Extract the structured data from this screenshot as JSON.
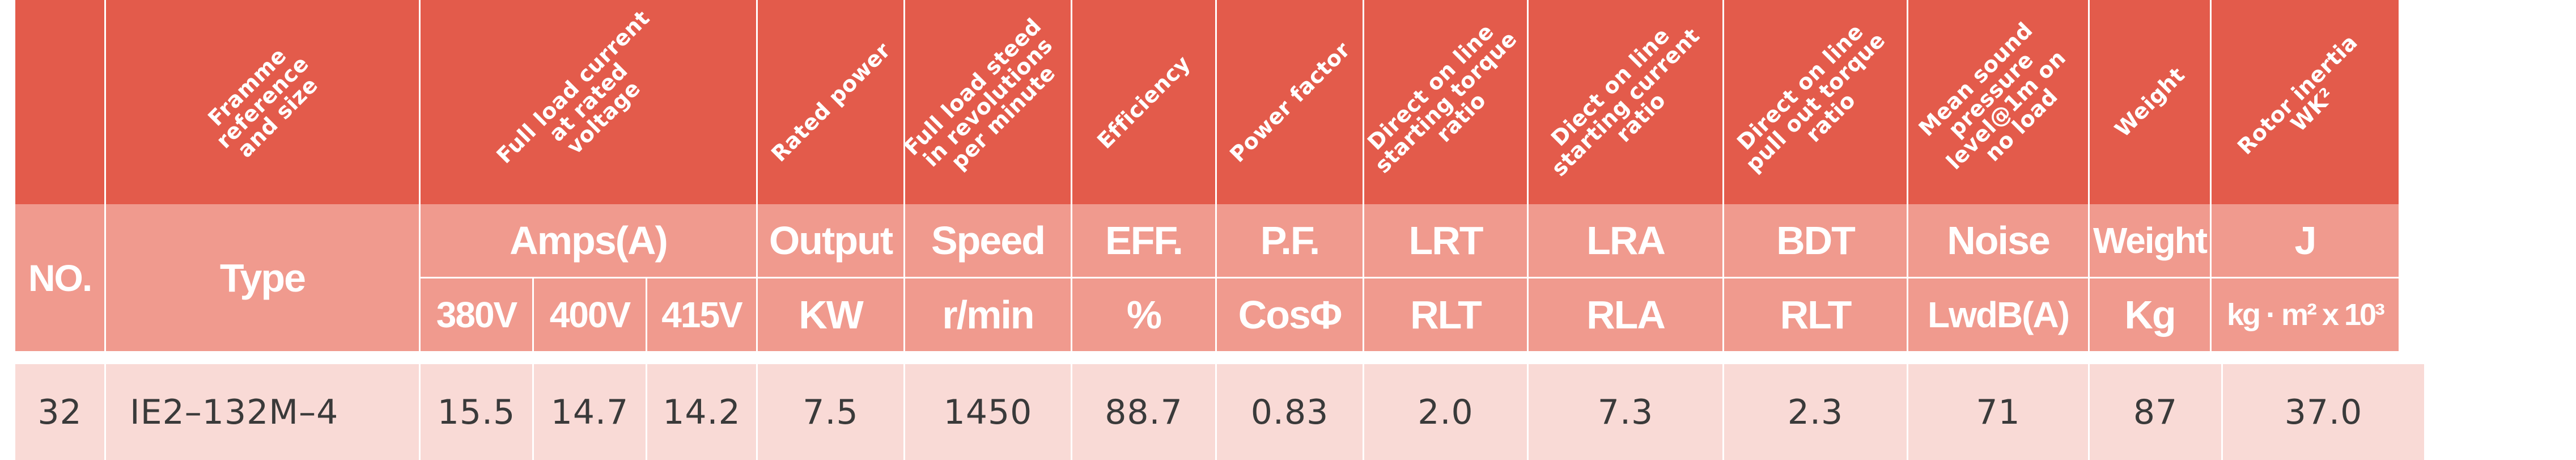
{
  "header_labels": {
    "frame": "Framme\nreference\nand size",
    "current": "Full load current\nat rated\nvoltage",
    "power": "Rated power",
    "speed": "Full load steed\nin revolutions\nper minute",
    "efficiency": "Efficiency",
    "power_factor": "Power factor",
    "lrt": "Direct on line\nstarting torque\nratio",
    "lra": "Diect on line\nstarting current\nratio",
    "bdt": "Direct on line\npull out torque\nratio",
    "noise": "Mean sound\npressure\nlevel@1m on\nno load",
    "weight": "Weight",
    "inertia": "Rotor inertia\nWK²"
  },
  "units": {
    "no": "NO.",
    "type": "Type",
    "amps": "Amps(A)",
    "v380": "380V",
    "v400": "400V",
    "v415": "415V",
    "output": "Output",
    "kw": "KW",
    "speed": "Speed",
    "rmin": "r/min",
    "eff": "EFF.",
    "pct": "%",
    "pf": "P.F.",
    "cos": "CosΦ",
    "lrt": "LRT",
    "rlt1": "RLT",
    "lra": "LRA",
    "rla": "RLA",
    "bdt": "BDT",
    "rlt2": "RLT",
    "noise": "Noise",
    "lwdb": "LwdB(A)",
    "weight": "Weight",
    "kg": "Kg",
    "j": "J",
    "inertia_unit": "kg · m² x 10³"
  },
  "rows": [
    {
      "no": "32",
      "type": "IE2–132M–4",
      "a380": "15.5",
      "a400": "14.7",
      "a415": "14.2",
      "output": "7.5",
      "speed": "1450",
      "eff": "88.7",
      "pf": "0.83",
      "lrt": "2.0",
      "lra": "7.3",
      "bdt": "2.3",
      "noise": "71",
      "weight": "87",
      "j": "37.0"
    }
  ]
}
